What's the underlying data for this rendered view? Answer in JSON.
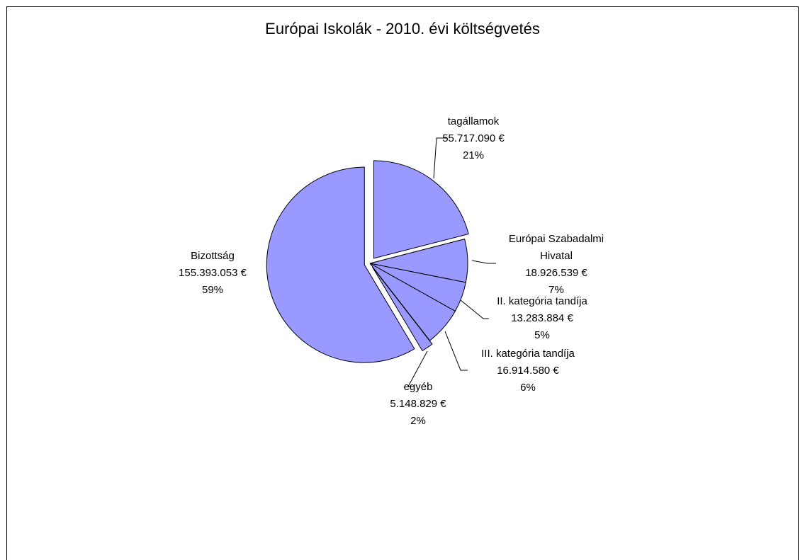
{
  "chart_data": {
    "type": "pie",
    "title": "Európai Iskolák - 2010. évi költségvetés",
    "categories": [
      "tagállamok",
      "Európai Szabadalmi Hivatal",
      "II. kategória tandíja",
      "III. kategória tandíja",
      "egyéb",
      "Bizottság"
    ],
    "values": [
      55717090,
      18926539,
      13283884,
      16914580,
      5148829,
      155393053
    ],
    "value_labels": [
      "55.717.090 €",
      "18.926.539 €",
      "13.283.884 €",
      "16.914.580 €",
      "5.148.829 €",
      "155.393.053 €"
    ],
    "percent_labels": [
      "21%",
      "7%",
      "5%",
      "6%",
      "2%",
      "59%"
    ],
    "color": "#9999ff"
  }
}
